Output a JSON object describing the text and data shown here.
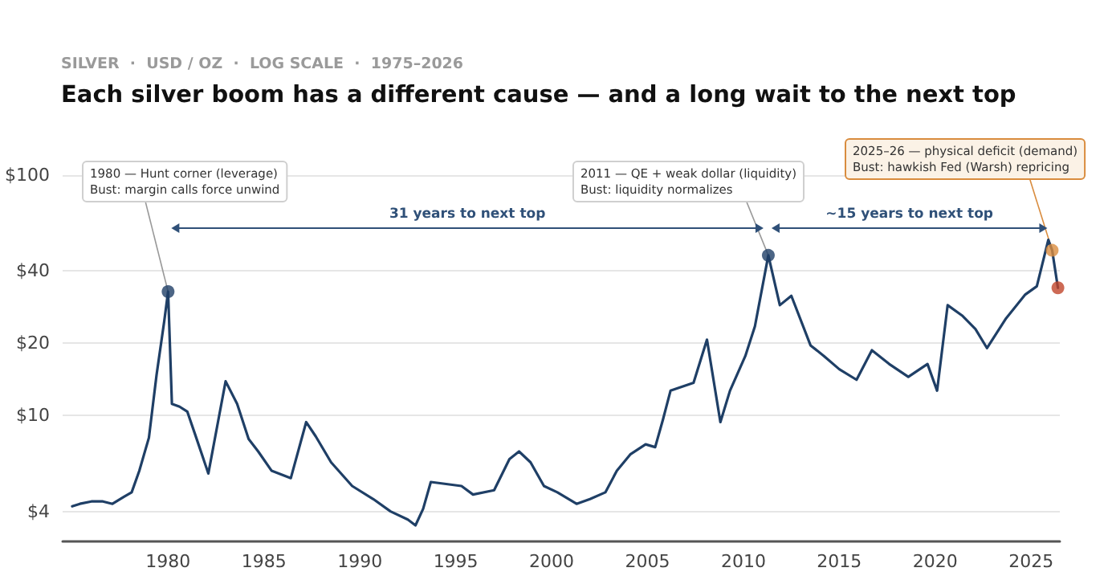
{
  "chart_data": {
    "type": "line",
    "subtitle": "SILVER  ·  USD / OZ  ·  LOG SCALE  ·  1975–2026",
    "title": "Each silver boom has a different cause — and a long wait to the next top",
    "log": "y",
    "grid": "y",
    "xlim": [
      1974.5,
      2026.5
    ],
    "xticks": [
      1980,
      1985,
      1990,
      1995,
      2000,
      2005,
      2010,
      2015,
      2020,
      2025
    ],
    "ylim": [
      3,
      100
    ],
    "yticks": [
      {
        "value": 4,
        "label": "$4"
      },
      {
        "value": 10,
        "label": "$10"
      },
      {
        "value": 20,
        "label": "$20"
      },
      {
        "value": 40,
        "label": "$40"
      },
      {
        "value": 100,
        "label": "$100"
      }
    ],
    "x": [
      1975.0,
      1975.4,
      1976.0,
      1976.6,
      1977.1,
      1977.7,
      1978.1,
      1978.5,
      1979.0,
      1979.4,
      1979.8,
      1980.0,
      1980.2,
      1980.6,
      1981.0,
      1981.4,
      1982.1,
      1982.6,
      1983.0,
      1983.6,
      1984.2,
      1984.7,
      1985.4,
      1986.4,
      1987.2,
      1987.7,
      1988.5,
      1989.6,
      1990.7,
      1991.6,
      1992.5,
      1992.9,
      1993.3,
      1993.7,
      1994.5,
      1995.3,
      1995.9,
      1997.0,
      1997.8,
      1998.3,
      1998.9,
      1999.6,
      2000.3,
      2001.3,
      2002.0,
      2002.8,
      2003.4,
      2004.1,
      2004.9,
      2005.4,
      2005.8,
      2006.2,
      2007.4,
      2008.1,
      2008.8,
      2009.3,
      2010.1,
      2010.6,
      2011.3,
      2011.9,
      2012.5,
      2013.5,
      2014.2,
      2015.0,
      2015.9,
      2016.7,
      2017.6,
      2018.6,
      2019.6,
      2020.1,
      2020.65,
      2021.4,
      2022.1,
      2022.7,
      2023.7,
      2024.7,
      2025.3,
      2025.9,
      2026.1,
      2026.4
    ],
    "series": [
      {
        "color": "#1f3f66",
        "marker": "none",
        "values": [
          4.2,
          4.3,
          4.4,
          4.4,
          4.3,
          4.6,
          4.8,
          5.9,
          8.1,
          14.8,
          24.7,
          32.8,
          11.2,
          10.9,
          10.4,
          8.4,
          5.75,
          9.4,
          13.9,
          11.2,
          8.0,
          7.1,
          5.9,
          5.5,
          9.4,
          8.2,
          6.4,
          5.1,
          4.5,
          4.0,
          3.7,
          3.5,
          4.1,
          5.3,
          5.2,
          5.1,
          4.7,
          4.9,
          6.6,
          7.1,
          6.4,
          5.1,
          4.8,
          4.3,
          4.5,
          4.8,
          5.9,
          6.9,
          7.6,
          7.4,
          9.6,
          12.7,
          13.7,
          20.7,
          9.4,
          12.7,
          17.7,
          23.5,
          46.4,
          28.8,
          31.5,
          19.6,
          17.7,
          15.6,
          14.1,
          18.7,
          16.4,
          14.5,
          16.4,
          12.7,
          28.8,
          26.1,
          22.9,
          19.1,
          25.4,
          31.9,
          34.5,
          53.8,
          48.7,
          34
        ]
      },
      {
        "type": "scatter",
        "marker": "circle",
        "x": [
          1980.0,
          2011.3,
          2026.1,
          2026.4
        ],
        "values": [
          32.8,
          46.4,
          48.7,
          34
        ],
        "colors": [
          "#1f3f66",
          "#1f3f66",
          "#d98c3e",
          "#c0452b"
        ]
      }
    ],
    "annotations": [
      {
        "text": "1980 — Hunt corner (leverage)\nBust: margin calls force unwind",
        "x": 1980.0,
        "y": 32.8
      },
      {
        "text": "2011 — QE + weak dollar (liquidity)\nBust: liquidity normalizes",
        "x": 2011.3,
        "y": 46.4
      },
      {
        "text": "2025–26 — physical deficit (demand)\nBust: hawkish Fed (Warsh) repricing",
        "x": 2026.1,
        "y": 48.7
      },
      "31 years to next top",
      "~15 years to next top"
    ]
  }
}
